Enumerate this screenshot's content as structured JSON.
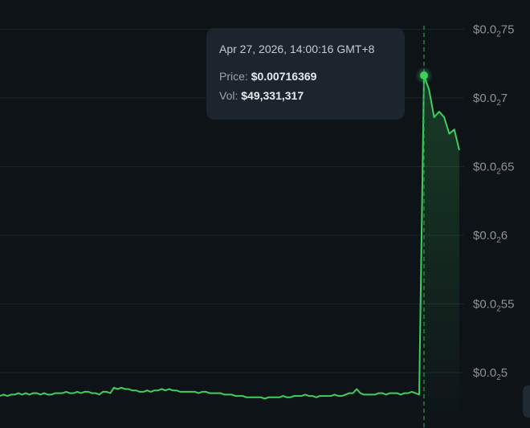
{
  "chart_data": {
    "type": "area",
    "y_ticks": [
      {
        "value": 0.0075,
        "prefix": "$0.0",
        "sub": "2",
        "suffix": "75"
      },
      {
        "value": 0.007,
        "prefix": "$0.0",
        "sub": "2",
        "suffix": "7"
      },
      {
        "value": 0.0065,
        "prefix": "$0.0",
        "sub": "2",
        "suffix": "65"
      },
      {
        "value": 0.006,
        "prefix": "$0.0",
        "sub": "2",
        "suffix": "6"
      },
      {
        "value": 0.0055,
        "prefix": "$0.0",
        "sub": "2",
        "suffix": "55"
      },
      {
        "value": 0.005,
        "prefix": "$0.0",
        "sub": "2",
        "suffix": "5"
      }
    ],
    "ylim": [
      0.00475,
      0.0077
    ],
    "grid": true,
    "line_color": "#3ecf5e",
    "series": [
      {
        "values": [
          0.00483,
          0.00484,
          0.00483,
          0.00484,
          0.00484,
          0.00485,
          0.00484,
          0.00485,
          0.00484,
          0.00485,
          0.00485,
          0.00484,
          0.00485,
          0.00484,
          0.00484,
          0.00485,
          0.00485,
          0.00485,
          0.00486,
          0.00485,
          0.00485,
          0.00486,
          0.00485,
          0.00486,
          0.00486,
          0.00485,
          0.00485,
          0.00484,
          0.00486,
          0.00486,
          0.00485,
          0.00489,
          0.00488,
          0.00489,
          0.00488,
          0.00488,
          0.00487,
          0.00487,
          0.00486,
          0.00486,
          0.00487,
          0.00486,
          0.00487,
          0.00487,
          0.00488,
          0.00487,
          0.00488,
          0.00487,
          0.00487,
          0.00486,
          0.00486,
          0.00486,
          0.00486,
          0.00486,
          0.00485,
          0.00486,
          0.00486,
          0.00485,
          0.00485,
          0.00485,
          0.00485,
          0.00484,
          0.00484,
          0.00484,
          0.00483,
          0.00483,
          0.00483,
          0.00482,
          0.00482,
          0.00482,
          0.00482,
          0.00482,
          0.00481,
          0.00482,
          0.00482,
          0.00482,
          0.00482,
          0.00483,
          0.00482,
          0.00482,
          0.00483,
          0.00483,
          0.00483,
          0.00484,
          0.00483,
          0.00483,
          0.00482,
          0.00483,
          0.00483,
          0.00483,
          0.00483,
          0.00484,
          0.00483,
          0.00483,
          0.00484,
          0.00485,
          0.00485,
          0.00488,
          0.00485,
          0.00484,
          0.00484,
          0.00484,
          0.00484,
          0.00485,
          0.00485,
          0.00484,
          0.00485,
          0.00485,
          0.00485,
          0.00484,
          0.00485,
          0.00485,
          0.00486,
          0.00485,
          0.00484,
          0.00716369,
          0.00706,
          0.00686,
          0.0069,
          0.00686,
          0.00674,
          0.00677,
          0.00662
        ]
      }
    ],
    "highlight_index": 115
  },
  "tooltip": {
    "time": "Apr 27, 2026, 14:00:16 GMT+8",
    "price_label": "Price:",
    "price_value": "$0.00716369",
    "vol_label": "Vol:",
    "vol_value": "$49,331,317"
  }
}
